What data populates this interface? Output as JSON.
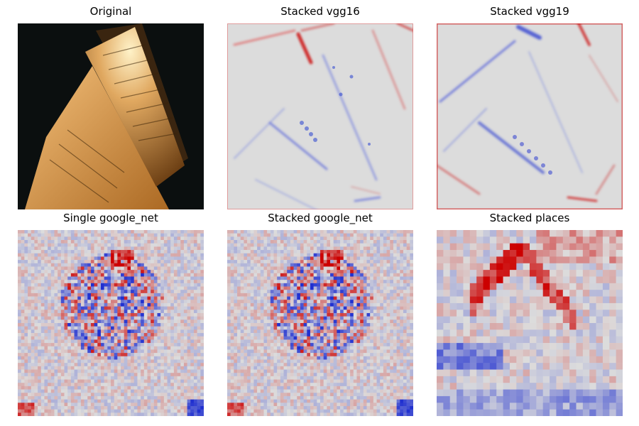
{
  "figure": {
    "panels": [
      {
        "title": "Original",
        "kind": "photo"
      },
      {
        "title": "Stacked vgg16",
        "kind": "saliency-smooth"
      },
      {
        "title": "Stacked vgg19",
        "kind": "saliency-smooth"
      },
      {
        "title": "Single google_net",
        "kind": "saliency-blocky"
      },
      {
        "title": "Stacked google_net",
        "kind": "saliency-blocky"
      },
      {
        "title": "Stacked places",
        "kind": "saliency-coarse"
      }
    ],
    "colors": {
      "positive": "#cc0000",
      "negative": "#2030d0",
      "neutral": "#dcdcdc",
      "background": "#0a0d0d",
      "paper_light": "#f0c98a",
      "paper_dark": "#8a5a22"
    }
  }
}
